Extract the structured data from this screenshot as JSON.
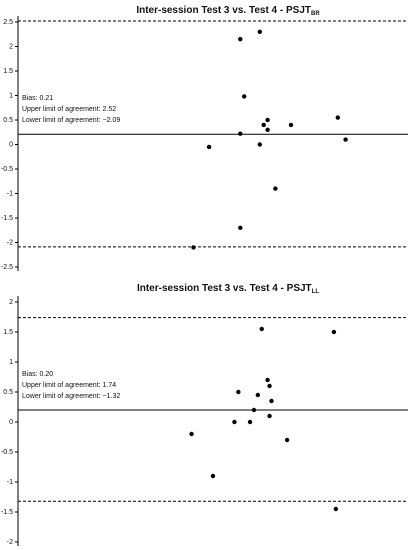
{
  "chart_data": [
    {
      "type": "scatter",
      "title": "Inter-session Test 3 vs. Test 4 - PSJT",
      "title_subscript": "BR",
      "x": [
        57,
        62,
        58,
        64,
        63,
        64,
        57,
        70,
        82,
        84,
        62,
        49,
        66,
        57,
        45
      ],
      "values": [
        2.15,
        2.3,
        0.98,
        0.5,
        0.4,
        0.3,
        0.22,
        0.4,
        0.55,
        0.1,
        0,
        -0.05,
        -0.9,
        -1.7,
        -2.1
      ],
      "xlim": [
        0,
        100
      ],
      "ylim": [
        -2.5,
        2.5
      ],
      "yticks": [
        -2.5,
        -2,
        -1.5,
        -1,
        -0.5,
        0,
        0.5,
        1,
        1.5,
        2,
        2.5
      ],
      "color": "#000000",
      "reference_lines": [
        {
          "value": 0.21,
          "style": "solid"
        },
        {
          "value": 2.52,
          "style": "dashed"
        },
        {
          "value": -2.09,
          "style": "dashed"
        }
      ],
      "annotations": [
        "Bias: 0.21",
        "Upper limit of agreement: 2.52",
        "Lower limit of agreement: −2.09"
      ]
    },
    {
      "type": "scatter",
      "title": "Inter-session Test 3 vs. Test 4 - PSJT",
      "title_subscript": "LL",
      "x": [
        62.5,
        81,
        64,
        64.5,
        56.5,
        61.5,
        65,
        60.5,
        64.5,
        55.5,
        59.5,
        44.5,
        69,
        50,
        81.5
      ],
      "values": [
        1.55,
        1.5,
        0.7,
        0.6,
        0.5,
        0.45,
        0.35,
        0.2,
        0.1,
        0,
        0,
        -0.2,
        -0.3,
        -0.9,
        -1.45
      ],
      "xlim": [
        0,
        100
      ],
      "ylim": [
        -2,
        2
      ],
      "yticks": [
        -2,
        -1.5,
        -1,
        -0.5,
        0,
        0.5,
        1,
        1.5,
        2
      ],
      "color": "#000000",
      "reference_lines": [
        {
          "value": 0.2,
          "style": "solid"
        },
        {
          "value": 1.74,
          "style": "dashed"
        },
        {
          "value": -1.32,
          "style": "dashed"
        }
      ],
      "annotations": [
        "Bias: 0.20",
        "Upper limit of agreement: 1.74",
        "Lower limit of agreement: −1.32"
      ]
    }
  ]
}
